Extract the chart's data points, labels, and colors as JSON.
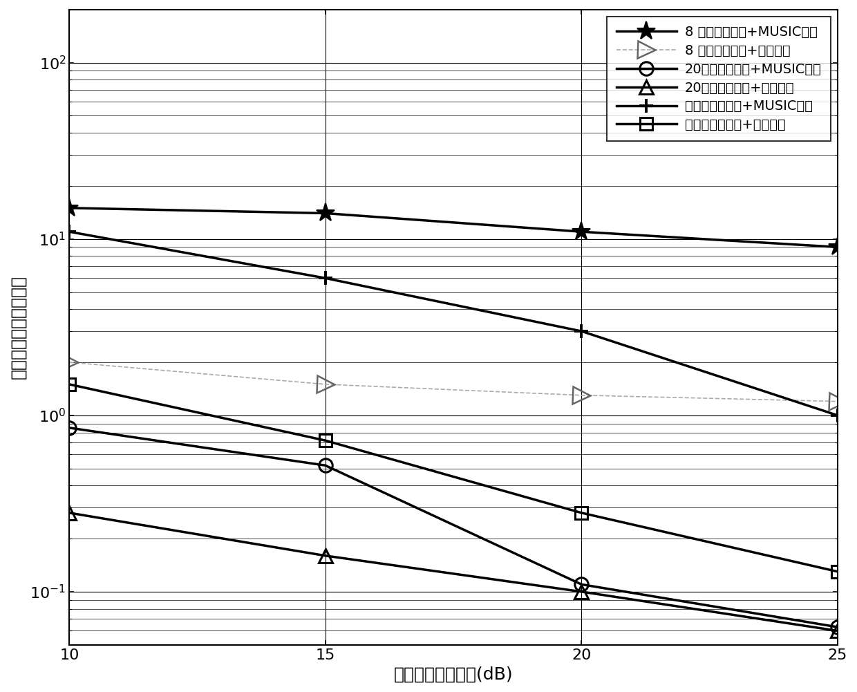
{
  "x": [
    10,
    15,
    20,
    25
  ],
  "series": [
    {
      "label": "8 阵元均匀线阵+MUSIC方法",
      "y": [
        15.0,
        14.0,
        11.0,
        9.0
      ],
      "color": "#000000",
      "marker": "star",
      "linewidth": 2.5,
      "linestyle": "solid",
      "markersize": 20,
      "markerfacecolor": "black",
      "markeredgecolor": "black",
      "markeredgewidth": 1.5
    },
    {
      "label": "8 阵元均匀线阵+所提方法",
      "y": [
        2.0,
        1.5,
        1.3,
        1.2
      ],
      "color": "#aaaaaa",
      "marker": "tri_right",
      "linewidth": 1.2,
      "linestyle": "dashed",
      "markersize": 18,
      "markerfacecolor": "none",
      "markeredgecolor": "#666666",
      "markeredgewidth": 1.8
    },
    {
      "label": "20阵元均匀线阵+MUSIC算法",
      "y": [
        0.85,
        0.52,
        0.11,
        0.063
      ],
      "color": "#000000",
      "marker": "circle",
      "linewidth": 2.5,
      "linestyle": "solid",
      "markersize": 14,
      "markerfacecolor": "none",
      "markeredgecolor": "black",
      "markeredgewidth": 2.2
    },
    {
      "label": "20阵元均匀线阵+所提方法",
      "y": [
        0.28,
        0.16,
        0.1,
        0.06
      ],
      "color": "#000000",
      "marker": "triangle_up",
      "linewidth": 2.5,
      "linestyle": "solid",
      "markersize": 14,
      "markerfacecolor": "none",
      "markeredgecolor": "black",
      "markeredgewidth": 2.2
    },
    {
      "label": "所提分布式阵列+MUSIC算法",
      "y": [
        11.0,
        6.0,
        3.0,
        1.0
      ],
      "color": "#000000",
      "marker": "plus",
      "linewidth": 2.5,
      "linestyle": "solid",
      "markersize": 15,
      "markerfacecolor": "black",
      "markeredgecolor": "black",
      "markeredgewidth": 2.8
    },
    {
      "label": "所提分布式阵列+所提方法",
      "y": [
        1.5,
        0.72,
        0.28,
        0.13
      ],
      "color": "#000000",
      "marker": "square",
      "linewidth": 2.5,
      "linestyle": "solid",
      "markersize": 13,
      "markerfacecolor": "none",
      "markeredgecolor": "black",
      "markeredgewidth": 2.2
    }
  ],
  "xlabel": "相干积累后信噪比(dB)",
  "ylabel": "测角均方根误差（度）",
  "xlim": [
    10,
    25
  ],
  "xticks": [
    10,
    15,
    20,
    25
  ],
  "ymin": 0.05,
  "ymax": 200,
  "label_fontsize": 18,
  "tick_fontsize": 16,
  "legend_fontsize": 14
}
